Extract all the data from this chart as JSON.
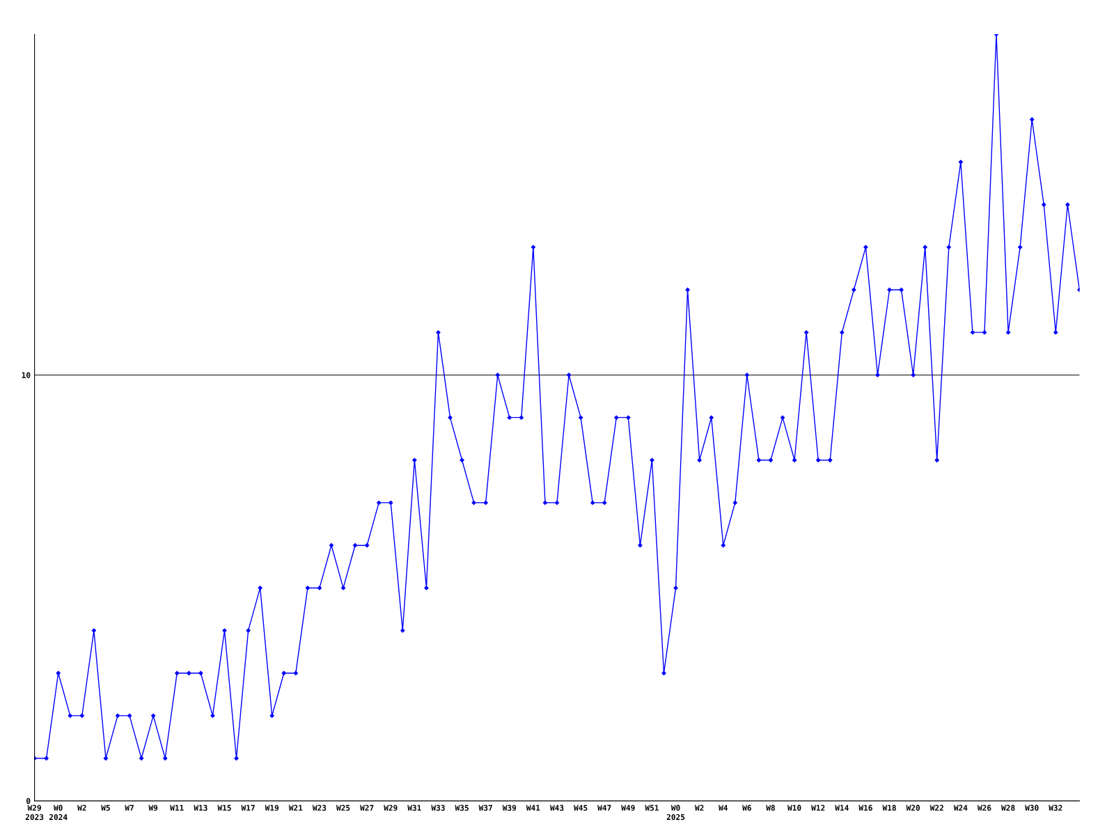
{
  "chart_data": {
    "type": "line",
    "categories": [
      "W29\n2023",
      null,
      "W0\n2024",
      null,
      "W2",
      null,
      "W5",
      null,
      "W7",
      null,
      "W9",
      null,
      "W11",
      null,
      "W13",
      null,
      "W15",
      null,
      "W17",
      null,
      "W19",
      null,
      "W21",
      null,
      "W23",
      null,
      "W25",
      null,
      "W27",
      null,
      "W29",
      null,
      "W31",
      null,
      "W33",
      null,
      "W35",
      null,
      "W37",
      null,
      "W39",
      null,
      "W41",
      null,
      "W43",
      null,
      "W45",
      null,
      "W47",
      null,
      "W49",
      null,
      "W51",
      null,
      "W0\n2025",
      null,
      "W2",
      null,
      "W4",
      null,
      "W6",
      null,
      "W8",
      null,
      "W10",
      null,
      "W12",
      null,
      "W14",
      null,
      "W16",
      null,
      "W18",
      null,
      "W20",
      null,
      "W22",
      null,
      "W24",
      null,
      "W26",
      null,
      "W28",
      null,
      "W30",
      null,
      "W32",
      null,
      null
    ],
    "series": [
      {
        "color": "#0000ff",
        "values": [
          1,
          1,
          3,
          2,
          2,
          4,
          1,
          2,
          2,
          1,
          2,
          1,
          3,
          3,
          3,
          2,
          4,
          1,
          4,
          5,
          2,
          3,
          3,
          5,
          5,
          6,
          5,
          6,
          6,
          7,
          7,
          4,
          8,
          5,
          11,
          9,
          8,
          7,
          7,
          10,
          9,
          9,
          13,
          7,
          7,
          10,
          9,
          7,
          7,
          9,
          9,
          6,
          8,
          3,
          5,
          12,
          8,
          9,
          6,
          7,
          10,
          8,
          8,
          9,
          8,
          11,
          8,
          8,
          11,
          12,
          13,
          10,
          12,
          12,
          10,
          13,
          8,
          13,
          15,
          11,
          11,
          18,
          11,
          13,
          16,
          14,
          11,
          14,
          12
        ]
      }
    ],
    "ylim": [
      0,
      18
    ],
    "yticks": [
      0,
      10
    ],
    "grid": "y",
    "marker": "diamond",
    "line_style": "solid"
  }
}
